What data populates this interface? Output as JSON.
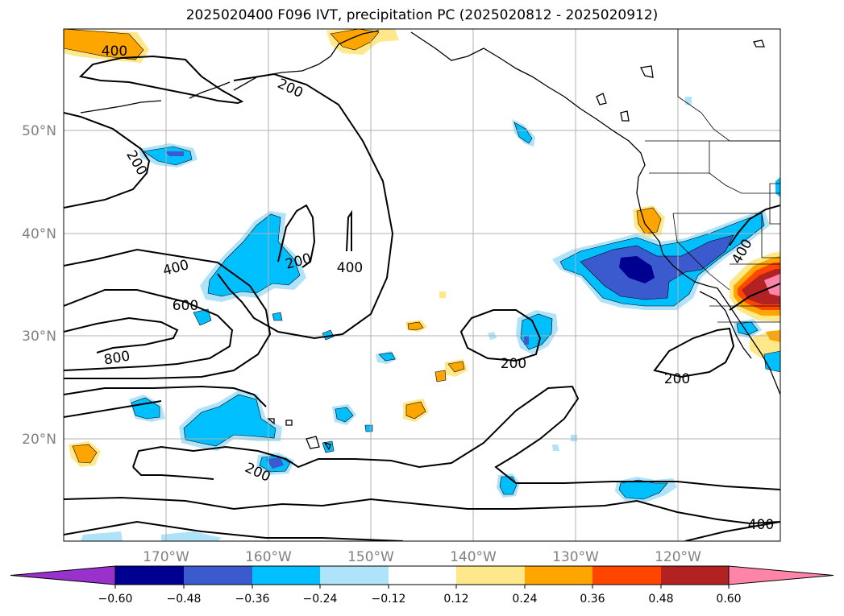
{
  "title": "2025020400 F096 IVT, precipitation PC (2025020812 - 2025020912)",
  "map": {
    "lon_ticks": [
      "170°W",
      "160°W",
      "150°W",
      "140°W",
      "130°W",
      "120°W"
    ],
    "lat_ticks": [
      "50°N",
      "40°N",
      "30°N",
      "20°N"
    ],
    "ivt_contour_labels": [
      "400",
      "200",
      "200",
      "200",
      "400",
      "400",
      "600",
      "800",
      "200",
      "200",
      "200",
      "400",
      "400"
    ]
  },
  "colorbar": {
    "colors": [
      "#9932CC",
      "#000090",
      "#3A5ACD",
      "#00BFFF",
      "#AFE3FA",
      "#FFFFFF",
      "#FFE88A",
      "#FFA500",
      "#FF4500",
      "#B22222",
      "#FF85A8"
    ],
    "tick_labels": [
      "−0.60",
      "−0.48",
      "−0.36",
      "−0.24",
      "−0.12",
      "0.12",
      "0.24",
      "0.36",
      "0.48",
      "0.60"
    ]
  }
}
